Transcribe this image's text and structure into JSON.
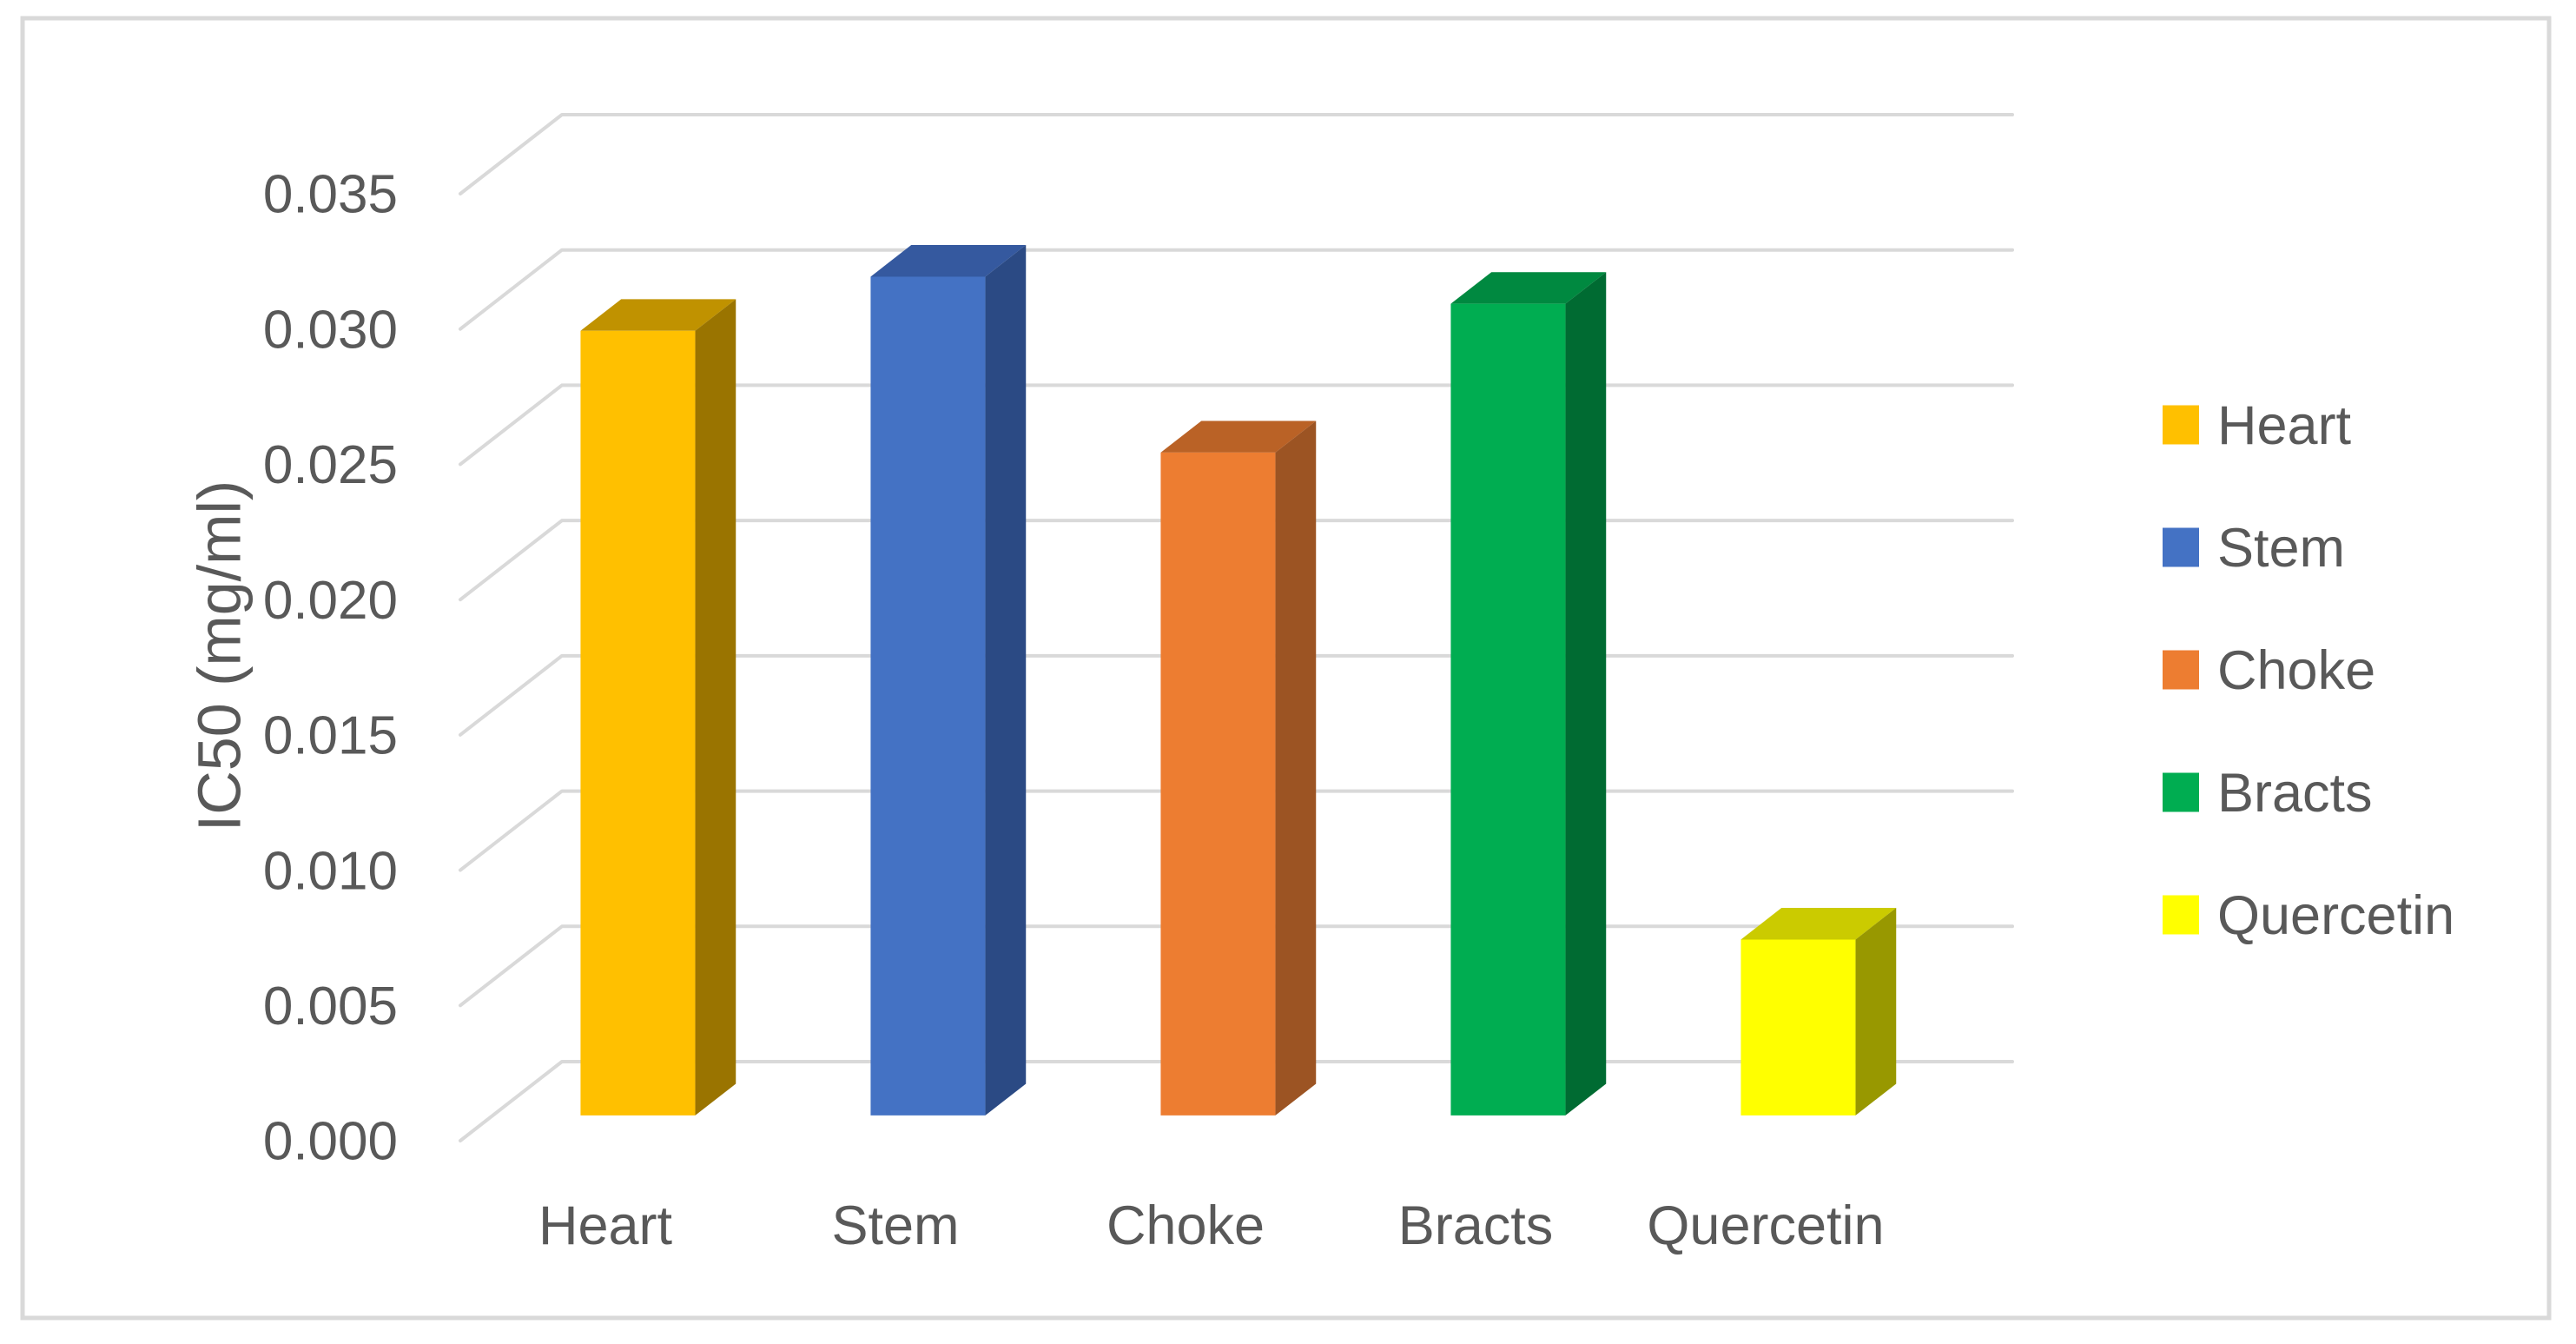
{
  "colors": {
    "background": "#FFFFFF",
    "figure_border": "#D9D9D9",
    "gridline": "#D9D9D9",
    "text": "#595959"
  },
  "chart_data": {
    "type": "bar",
    "subtype": "3d-column",
    "title": "",
    "xlabel": "",
    "ylabel": "IC50 (mg/ml)",
    "categories": [
      "Heart",
      "Stem",
      "Choke",
      "Bracts",
      "Quercetin"
    ],
    "values": [
      0.029,
      0.031,
      0.0245,
      0.03,
      0.0065
    ],
    "ylim": [
      0,
      0.035
    ],
    "ytick_step": 0.005,
    "ytick_labels": [
      "0.000",
      "0.005",
      "0.010",
      "0.015",
      "0.020",
      "0.025",
      "0.030",
      "0.035"
    ],
    "grid": true,
    "legend_position": "right",
    "series": [
      {
        "name": "Heart",
        "value": 0.029,
        "color_front": "#FFC000",
        "color_top": "#C09200",
        "color_side": "#9A7400"
      },
      {
        "name": "Stem",
        "value": 0.031,
        "color_front": "#4472C4",
        "color_top": "#35599F",
        "color_side": "#2B4A84"
      },
      {
        "name": "Choke",
        "value": 0.0245,
        "color_front": "#ED7D31",
        "color_top": "#BA6226",
        "color_side": "#9C5423"
      },
      {
        "name": "Bracts",
        "value": 0.03,
        "color_front": "#00AD51",
        "color_top": "#008940",
        "color_side": "#006B32"
      },
      {
        "name": "Quercetin",
        "value": 0.0065,
        "color_front": "#FFFF00",
        "color_top": "#CBCB00",
        "color_side": "#989800"
      }
    ],
    "legend": [
      {
        "label": "Heart",
        "color": "#FFC000"
      },
      {
        "label": "Stem",
        "color": "#4472C4"
      },
      {
        "label": "Choke",
        "color": "#ED7D31"
      },
      {
        "label": "Bracts",
        "color": "#00AD51"
      },
      {
        "label": "Quercetin",
        "color": "#FFFF00"
      }
    ]
  }
}
